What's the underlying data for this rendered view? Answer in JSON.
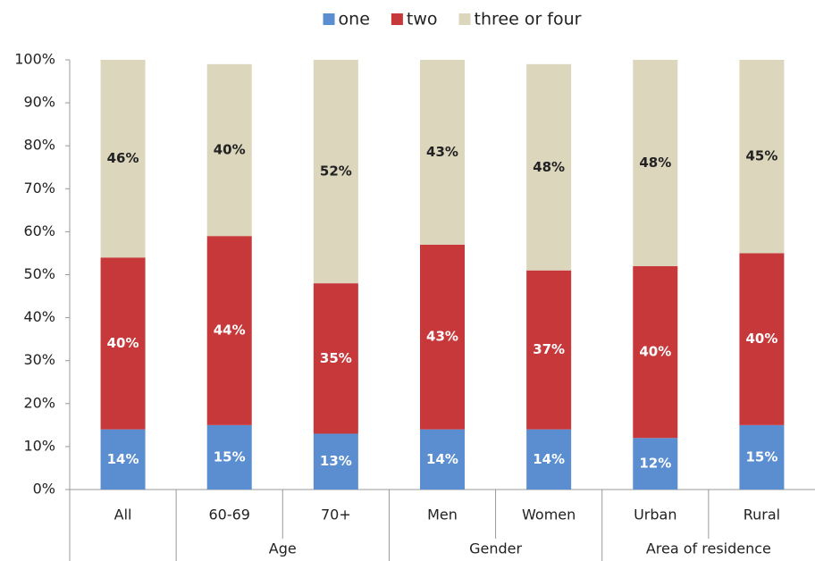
{
  "chart_data": {
    "type": "stacked_bar",
    "categories": [
      "All",
      "60-69",
      "70+",
      "Men",
      "Women",
      "Urban",
      "Rural"
    ],
    "category_groups": [
      null,
      "Age",
      "Age",
      "Gender",
      "Gender",
      "Area of residence",
      "Area of residence"
    ],
    "series": [
      {
        "name": "one",
        "color": "#5a8ed0",
        "label_color": "#ffffff",
        "values": [
          14,
          15,
          13,
          14,
          14,
          12,
          15
        ],
        "value_labels": [
          "14%",
          "15%",
          "13%",
          "14%",
          "14%",
          "12%",
          "15%"
        ]
      },
      {
        "name": "two",
        "color": "#c7383a",
        "label_color": "#ffffff",
        "values": [
          40,
          44,
          35,
          43,
          37,
          40,
          40
        ],
        "value_labels": [
          "40%",
          "44%",
          "35%",
          "43%",
          "37%",
          "40%",
          "40%"
        ]
      },
      {
        "name": "three or four",
        "color": "#dcd6bd",
        "label_color": "#222222",
        "values": [
          46,
          40,
          52,
          43,
          48,
          48,
          45
        ],
        "value_labels": [
          "46%",
          "40%",
          "52%",
          "43%",
          "48%",
          "48%",
          "45%"
        ]
      }
    ],
    "ylim": [
      0,
      100
    ],
    "yticks": [
      {
        "value": 0,
        "label": "0%"
      },
      {
        "value": 10,
        "label": "10%"
      },
      {
        "value": 20,
        "label": "20%"
      },
      {
        "value": 30,
        "label": "30%"
      },
      {
        "value": 40,
        "label": "40%"
      },
      {
        "value": 50,
        "label": "50%"
      },
      {
        "value": 60,
        "label": "60%"
      },
      {
        "value": 70,
        "label": "70%"
      },
      {
        "value": 80,
        "label": "80%"
      },
      {
        "value": 90,
        "label": "90%"
      },
      {
        "value": 100,
        "label": "100%"
      }
    ],
    "legend": "top"
  }
}
